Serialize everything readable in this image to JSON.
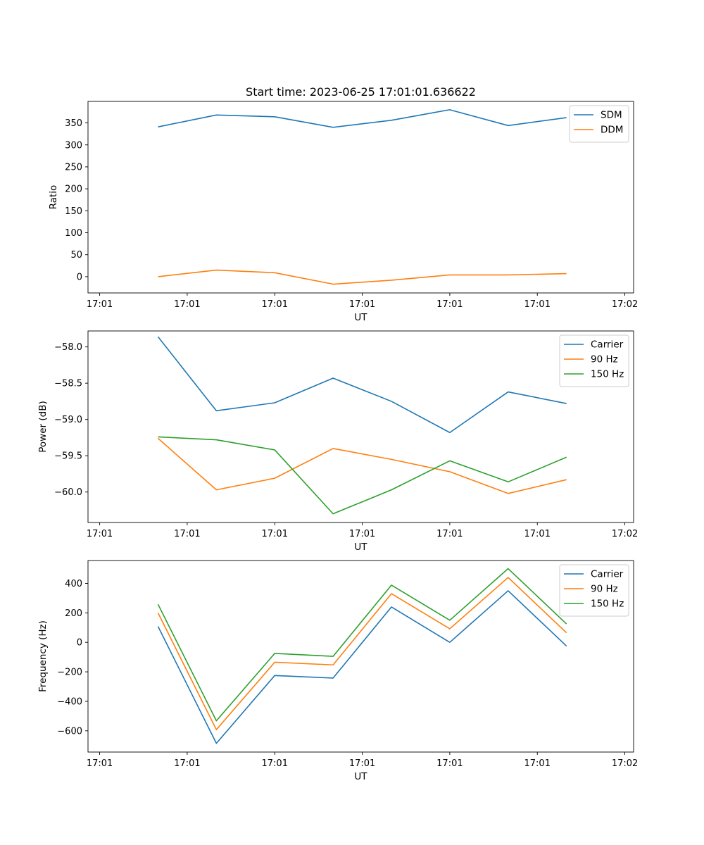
{
  "figure": {
    "title": "Start time: 2023-06-25 17:01:01.636622"
  },
  "chart_data": [
    {
      "type": "line",
      "title": "Start time: 2023-06-25 17:01:01.636622",
      "xlabel": "UT",
      "ylabel": "Ratio",
      "x_tick_labels": [
        "17:01",
        "17:01",
        "17:01",
        "17:01",
        "17:01",
        "17:01",
        "17:02"
      ],
      "x": [
        1,
        2,
        3,
        4,
        5,
        6,
        7,
        8
      ],
      "xlim": [
        -0.2,
        9.15
      ],
      "ylim": [
        -37,
        399
      ],
      "y_ticks": [
        0,
        50,
        100,
        150,
        200,
        250,
        300,
        350
      ],
      "legend_position": "upper right",
      "grid": false,
      "series": [
        {
          "name": "SDM",
          "color": "#1f77b4",
          "values": [
            341,
            368,
            364,
            340,
            356,
            380,
            344,
            362
          ]
        },
        {
          "name": "DDM",
          "color": "#ff7f0e",
          "values": [
            0,
            15,
            9,
            -17,
            -8,
            4,
            4,
            7
          ]
        }
      ]
    },
    {
      "type": "line",
      "xlabel": "UT",
      "ylabel": "Power (dB)",
      "x_tick_labels": [
        "17:01",
        "17:01",
        "17:01",
        "17:01",
        "17:01",
        "17:01",
        "17:02"
      ],
      "x": [
        1,
        2,
        3,
        4,
        5,
        6,
        7,
        8
      ],
      "xlim": [
        -0.2,
        9.15
      ],
      "ylim": [
        -60.42,
        -57.78
      ],
      "y_ticks": [
        -60.0,
        -59.5,
        -59.0,
        -58.5,
        -58.0
      ],
      "y_tick_labels": [
        "−60.0",
        "−59.5",
        "−59.0",
        "−58.5",
        "−58.0"
      ],
      "legend_position": "upper right",
      "grid": false,
      "series": [
        {
          "name": "Carrier",
          "color": "#1f77b4",
          "values": [
            -57.86,
            -58.88,
            -58.77,
            -58.43,
            -58.75,
            -59.18,
            -58.62,
            -58.78
          ]
        },
        {
          "name": "90 Hz",
          "color": "#ff7f0e",
          "values": [
            -59.26,
            -59.97,
            -59.81,
            -59.4,
            -59.55,
            -59.72,
            -60.02,
            -59.83
          ]
        },
        {
          "name": "150 Hz",
          "color": "#2ca02c",
          "values": [
            -59.24,
            -59.28,
            -59.42,
            -60.3,
            -59.97,
            -59.57,
            -59.86,
            -59.52
          ]
        }
      ]
    },
    {
      "type": "line",
      "xlabel": "UT",
      "ylabel": "Frequency (Hz)",
      "x_tick_labels": [
        "17:01",
        "17:01",
        "17:01",
        "17:01",
        "17:01",
        "17:01",
        "17:02"
      ],
      "x": [
        1,
        2,
        3,
        4,
        5,
        6,
        7,
        8
      ],
      "xlim": [
        -0.2,
        9.15
      ],
      "ylim": [
        -744,
        555
      ],
      "y_ticks": [
        -600,
        -400,
        -200,
        0,
        200,
        400
      ],
      "y_tick_labels": [
        "−600",
        "−400",
        "−200",
        "0",
        "200",
        "400"
      ],
      "legend_position": "upper right",
      "grid": false,
      "series": [
        {
          "name": "Carrier",
          "color": "#1f77b4",
          "values": [
            108,
            -685,
            -225,
            -242,
            240,
            0,
            350,
            -25
          ]
        },
        {
          "name": "90 Hz",
          "color": "#ff7f0e",
          "values": [
            200,
            -592,
            -135,
            -153,
            330,
            92,
            440,
            65
          ]
        },
        {
          "name": "150 Hz",
          "color": "#2ca02c",
          "values": [
            258,
            -532,
            -75,
            -95,
            388,
            150,
            500,
            125
          ]
        }
      ]
    }
  ]
}
